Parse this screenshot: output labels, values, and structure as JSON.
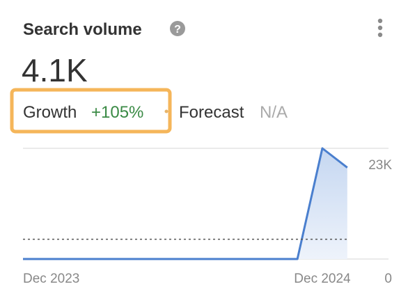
{
  "header": {
    "title": "Search volume"
  },
  "metric": {
    "value": "4.1K"
  },
  "growth": {
    "label": "Growth",
    "value": "+105%"
  },
  "forecast": {
    "label": "Forecast",
    "value": "N/A"
  },
  "chart_data": {
    "type": "area",
    "x": [
      "Dec 2023",
      null,
      null,
      null,
      null,
      null,
      null,
      null,
      null,
      null,
      null,
      null,
      "Dec 2024",
      null
    ],
    "series": [
      {
        "color": "#4a7fce",
        "values": [
          0,
          0,
          0,
          0,
          0,
          0,
          0,
          0,
          0,
          0,
          0,
          0,
          23000,
          19000
        ]
      }
    ],
    "reference_line": 4100,
    "ylim": [
      0,
      23000
    ],
    "yticks": [
      {
        "value": 23000,
        "label": "23K"
      },
      {
        "value": 0,
        "label": "0"
      }
    ]
  }
}
